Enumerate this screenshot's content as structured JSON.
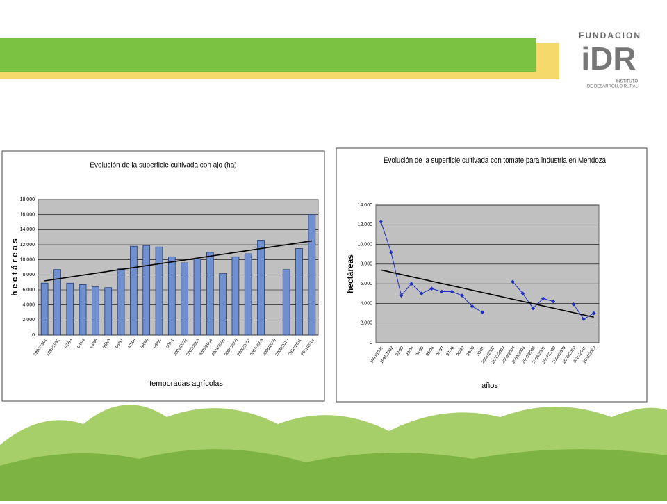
{
  "logo": {
    "top": "FUNDACION",
    "mark": "iDR",
    "line1": "INSTITUTO",
    "line2": "DE DESARROLLO RURAL"
  },
  "chart_data": [
    {
      "type": "bar",
      "title": "Evolución de la superficie cultivada con ajo (ha)",
      "ylabel": "h e c t á r e a s",
      "xlabel": "temporadas agrícolas",
      "categories": [
        "1990/1991",
        "1991/1992",
        "92/93",
        "93/94",
        "94/95",
        "95/96",
        "96/97",
        "97/98",
        "98/99",
        "99/00",
        "00/01",
        "2001/2002",
        "2002/2003",
        "2003/2004",
        "2004/2005",
        "2005/2006",
        "2006/2007",
        "2007/2008",
        "2008/2009",
        "2009/2010",
        "2010/2011",
        "2011/2012"
      ],
      "values": [
        6900,
        8700,
        6900,
        6700,
        6400,
        6300,
        8800,
        11800,
        11900,
        11700,
        10400,
        9600,
        10100,
        11000,
        8200,
        10400,
        10800,
        12600,
        null,
        8700,
        11500,
        16000
      ],
      "trend": [
        7200,
        12500
      ],
      "color": "#6f8fcf",
      "ylim": [
        0,
        18000
      ],
      "yticks": [
        0,
        {
          "value": 2000,
          "label": "2.000"
        },
        {
          "value": 4000,
          "label": "4.000"
        },
        {
          "value": 6000,
          "label": "6.000"
        },
        {
          "value": 8000,
          "label": "8.000"
        },
        {
          "value": 10000,
          "label": "10.000"
        },
        {
          "value": 12000,
          "label": "12.000"
        },
        {
          "value": 14000,
          "label": "14.000"
        },
        {
          "value": 16000,
          "label": "16.000"
        },
        {
          "value": 18000,
          "label": "18.000"
        }
      ],
      "grid": true
    },
    {
      "type": "line",
      "title": "Evolución de la superficie cultivada con tomate para industria en Mendoza",
      "ylabel": "hectáreas",
      "xlabel": "años",
      "categories": [
        "1990/1991",
        "1991/1992",
        "92/93",
        "93/94",
        "94/95",
        "95/96",
        "96/97",
        "97/98",
        "98/99",
        "99/00",
        "00/01",
        "2001/2002",
        "2002/2003",
        "2003/2004",
        "2004/2005",
        "2005/2006",
        "2006/2007",
        "2007/2008",
        "2008/2009",
        "2009/2010",
        "2010/2011",
        "2011/2012"
      ],
      "values": [
        12300,
        9200,
        4800,
        6000,
        5000,
        5500,
        5200,
        5200,
        4800,
        3700,
        3100,
        null,
        null,
        6200,
        5000,
        3500,
        4500,
        4200,
        null,
        3900,
        2400,
        3000
      ],
      "trend": [
        7400,
        2600
      ],
      "color": "#1f2fbf",
      "ylim": [
        0,
        14000
      ],
      "yticks": [
        0,
        {
          "value": 2000,
          "label": "2.000"
        },
        {
          "value": 4000,
          "label": "4.000"
        },
        {
          "value": 6000,
          "label": "6.000"
        },
        {
          "value": 8000,
          "label": "8.000"
        },
        {
          "value": 10000,
          "label": "10.000"
        },
        {
          "value": 12000,
          "label": "12.000"
        },
        {
          "value": 14000,
          "label": "14.000"
        }
      ],
      "grid": true
    }
  ]
}
